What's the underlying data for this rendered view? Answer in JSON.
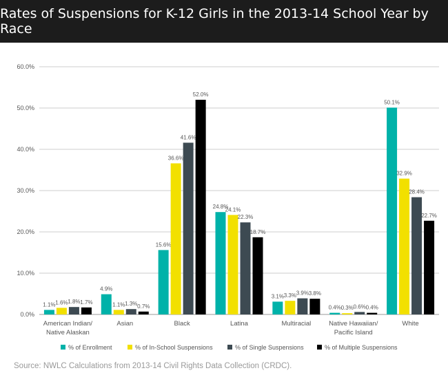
{
  "header": {
    "title": "Rates of Suspensions for K-12 Girls in the 2013-14 School Year by Race"
  },
  "source": "Source: NWLC Calculations from 2013-14 Civil Rights Data Collection (CRDC).",
  "chart_data": {
    "type": "bar",
    "title": "",
    "ylim": [
      0,
      60
    ],
    "yticks": [
      "0.0%",
      "10.0%",
      "20.0%",
      "30.0%",
      "40.0%",
      "50.0%",
      "60.0%"
    ],
    "grid": true,
    "legend": "bottom",
    "categories": [
      "American Indian/\nNative Alaskan",
      "Asian",
      "Black",
      "Latina",
      "Multiracial",
      "Native Hawaiian/\nPacific Island",
      "White"
    ],
    "series": [
      {
        "name": "% of Enrollment",
        "color": "#00b2a9",
        "values": [
          1.1,
          4.9,
          15.6,
          24.8,
          3.1,
          0.4,
          50.1
        ]
      },
      {
        "name": "% of In-School Suspensions",
        "color": "#f2e000",
        "values": [
          1.6,
          1.1,
          36.6,
          24.1,
          3.3,
          0.3,
          32.9
        ]
      },
      {
        "name": "% of Single Suspensions",
        "color": "#3d4a52",
        "values": [
          1.8,
          1.3,
          41.6,
          22.3,
          3.9,
          0.6,
          28.4
        ]
      },
      {
        "name": "% of Multiple Suspensions",
        "color": "#000000",
        "values": [
          1.7,
          0.7,
          52.0,
          18.7,
          3.8,
          0.4,
          22.7
        ]
      }
    ]
  }
}
